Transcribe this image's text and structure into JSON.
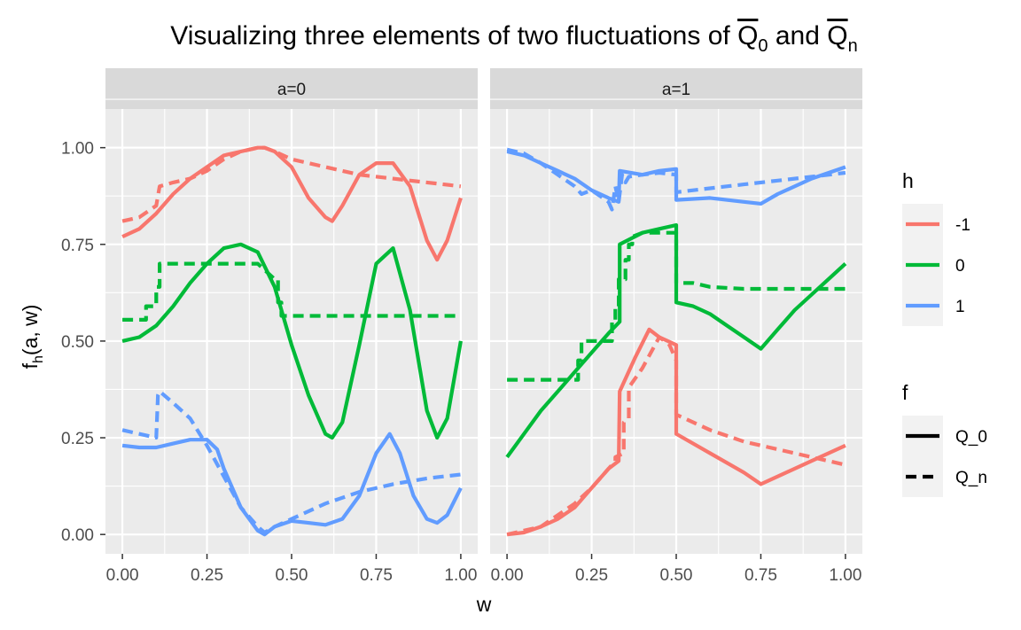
{
  "chart_data": {
    "type": "line",
    "title": {
      "prefix": "Visualizing three elements of two fluctuations of ",
      "q0_letter": "Q",
      "q0_sub": "0",
      "joiner": " and ",
      "qn_letter": "Q",
      "qn_sub": "n"
    },
    "xlabel": "w",
    "ylabel": {
      "base": "f",
      "sub": "h",
      "rest": "(a, w)"
    },
    "xlim": [
      -0.05,
      1.05
    ],
    "ylim": [
      -0.05,
      1.1
    ],
    "x_ticks": [
      0,
      0.25,
      0.5,
      0.75,
      1
    ],
    "x_tick_labels": [
      "0.00",
      "0.25",
      "0.50",
      "0.75",
      "1.00"
    ],
    "y_ticks": [
      0,
      0.25,
      0.5,
      0.75,
      1
    ],
    "y_tick_labels": [
      "0.00",
      "0.25",
      "0.50",
      "0.75",
      "1.00"
    ],
    "grid": true,
    "panels": [
      {
        "label": "a=0",
        "series": [
          {
            "h": "-1",
            "f": "Q_0",
            "x": [
              0,
              0.05,
              0.1,
              0.15,
              0.2,
              0.25,
              0.3,
              0.35,
              0.4,
              0.42,
              0.45,
              0.5,
              0.55,
              0.6,
              0.62,
              0.65,
              0.7,
              0.75,
              0.8,
              0.85,
              0.9,
              0.93,
              0.96,
              1.0
            ],
            "y": [
              0.77,
              0.79,
              0.83,
              0.88,
              0.92,
              0.95,
              0.98,
              0.99,
              1.0,
              1.0,
              0.99,
              0.95,
              0.87,
              0.82,
              0.81,
              0.85,
              0.93,
              0.96,
              0.96,
              0.9,
              0.76,
              0.71,
              0.76,
              0.87
            ]
          },
          {
            "h": "-1",
            "f": "Q_n",
            "x": [
              0,
              0.05,
              0.1,
              0.11,
              0.15,
              0.2,
              0.25,
              0.3,
              0.35,
              0.4,
              0.42,
              0.45,
              0.5,
              0.6,
              0.7,
              0.8,
              0.9,
              1.0
            ],
            "y": [
              0.81,
              0.82,
              0.85,
              0.9,
              0.91,
              0.92,
              0.94,
              0.97,
              0.99,
              1.0,
              1.0,
              0.99,
              0.97,
              0.95,
              0.93,
              0.92,
              0.91,
              0.9
            ]
          },
          {
            "h": "0",
            "f": "Q_0",
            "x": [
              0,
              0.05,
              0.1,
              0.15,
              0.2,
              0.25,
              0.3,
              0.35,
              0.4,
              0.45,
              0.5,
              0.55,
              0.6,
              0.62,
              0.65,
              0.7,
              0.75,
              0.8,
              0.85,
              0.9,
              0.93,
              0.96,
              1.0
            ],
            "y": [
              0.5,
              0.51,
              0.54,
              0.59,
              0.65,
              0.7,
              0.74,
              0.75,
              0.73,
              0.64,
              0.49,
              0.36,
              0.26,
              0.25,
              0.29,
              0.49,
              0.7,
              0.74,
              0.58,
              0.32,
              0.25,
              0.3,
              0.5
            ]
          },
          {
            "h": "0",
            "f": "Q_n",
            "x": [
              0,
              0.07,
              0.07,
              0.1,
              0.1,
              0.11,
              0.11,
              0.2,
              0.3,
              0.4,
              0.45,
              0.46,
              0.46,
              0.47,
              0.47,
              0.5,
              0.6,
              0.7,
              0.8,
              0.9,
              1.0
            ],
            "y": [
              0.555,
              0.555,
              0.59,
              0.59,
              0.64,
              0.64,
              0.7,
              0.7,
              0.7,
              0.7,
              0.66,
              0.66,
              0.6,
              0.6,
              0.565,
              0.565,
              0.565,
              0.565,
              0.565,
              0.565,
              0.565
            ]
          },
          {
            "h": "1",
            "f": "Q_0",
            "x": [
              0,
              0.05,
              0.1,
              0.15,
              0.2,
              0.25,
              0.28,
              0.3,
              0.35,
              0.4,
              0.42,
              0.45,
              0.5,
              0.55,
              0.6,
              0.65,
              0.7,
              0.75,
              0.79,
              0.82,
              0.86,
              0.9,
              0.93,
              0.96,
              1.0
            ],
            "y": [
              0.23,
              0.225,
              0.225,
              0.235,
              0.245,
              0.245,
              0.22,
              0.17,
              0.07,
              0.01,
              0.0,
              0.02,
              0.035,
              0.03,
              0.025,
              0.04,
              0.1,
              0.21,
              0.26,
              0.21,
              0.1,
              0.04,
              0.03,
              0.05,
              0.12
            ]
          },
          {
            "h": "1",
            "f": "Q_n",
            "x": [
              0,
              0.05,
              0.1,
              0.105,
              0.11,
              0.15,
              0.2,
              0.25,
              0.3,
              0.35,
              0.4,
              0.42,
              0.45,
              0.5,
              0.6,
              0.7,
              0.8,
              0.9,
              1.0
            ],
            "y": [
              0.27,
              0.26,
              0.25,
              0.36,
              0.37,
              0.34,
              0.3,
              0.23,
              0.15,
              0.07,
              0.02,
              0.005,
              0.02,
              0.04,
              0.08,
              0.11,
              0.13,
              0.145,
              0.155
            ]
          }
        ]
      },
      {
        "label": "a=1",
        "series": [
          {
            "h": "-1",
            "f": "Q_0",
            "x": [
              0,
              0.05,
              0.1,
              0.15,
              0.2,
              0.25,
              0.3,
              0.33,
              0.333,
              0.38,
              0.42,
              0.45,
              0.5,
              0.5,
              0.6,
              0.7,
              0.75,
              0.8,
              0.9,
              1.0
            ],
            "y": [
              0.0,
              0.005,
              0.02,
              0.04,
              0.07,
              0.12,
              0.17,
              0.19,
              0.37,
              0.46,
              0.53,
              0.51,
              0.49,
              0.26,
              0.21,
              0.16,
              0.13,
              0.15,
              0.19,
              0.23
            ]
          },
          {
            "h": "-1",
            "f": "Q_n",
            "x": [
              0,
              0.05,
              0.1,
              0.15,
              0.2,
              0.25,
              0.3,
              0.32,
              0.32,
              0.345,
              0.345,
              0.36,
              0.36,
              0.4,
              0.45,
              0.48,
              0.5,
              0.5,
              0.6,
              0.7,
              0.8,
              0.9,
              1.0
            ],
            "y": [
              0.0,
              0.01,
              0.02,
              0.05,
              0.08,
              0.12,
              0.17,
              0.19,
              0.2,
              0.21,
              0.29,
              0.3,
              0.38,
              0.43,
              0.51,
              0.49,
              0.45,
              0.31,
              0.27,
              0.24,
              0.22,
              0.2,
              0.18
            ]
          },
          {
            "h": "0",
            "f": "Q_0",
            "x": [
              0,
              0.05,
              0.1,
              0.15,
              0.2,
              0.25,
              0.3,
              0.333,
              0.333,
              0.4,
              0.45,
              0.5,
              0.5,
              0.55,
              0.6,
              0.65,
              0.7,
              0.75,
              0.8,
              0.85,
              0.9,
              0.95,
              1.0
            ],
            "y": [
              0.2,
              0.26,
              0.32,
              0.37,
              0.42,
              0.47,
              0.52,
              0.55,
              0.75,
              0.78,
              0.79,
              0.8,
              0.6,
              0.59,
              0.57,
              0.54,
              0.51,
              0.48,
              0.53,
              0.58,
              0.62,
              0.66,
              0.7
            ]
          },
          {
            "h": "0",
            "f": "Q_n",
            "x": [
              0,
              0.21,
              0.21,
              0.22,
              0.22,
              0.31,
              0.31,
              0.32,
              0.32,
              0.33,
              0.33,
              0.35,
              0.35,
              0.36,
              0.36,
              0.37,
              0.37,
              0.4,
              0.45,
              0.5,
              0.5,
              0.55,
              0.6,
              0.7,
              0.8,
              0.9,
              1.0
            ],
            "y": [
              0.4,
              0.4,
              0.45,
              0.45,
              0.5,
              0.5,
              0.55,
              0.55,
              0.59,
              0.59,
              0.66,
              0.66,
              0.71,
              0.71,
              0.75,
              0.75,
              0.77,
              0.78,
              0.78,
              0.78,
              0.65,
              0.65,
              0.64,
              0.635,
              0.635,
              0.635,
              0.635
            ]
          },
          {
            "h": "1",
            "f": "Q_0",
            "x": [
              0,
              0.05,
              0.1,
              0.15,
              0.2,
              0.25,
              0.3,
              0.33,
              0.333,
              0.4,
              0.45,
              0.5,
              0.5,
              0.6,
              0.7,
              0.75,
              0.8,
              0.9,
              1.0
            ],
            "y": [
              0.99,
              0.98,
              0.96,
              0.94,
              0.92,
              0.89,
              0.87,
              0.86,
              0.94,
              0.93,
              0.94,
              0.945,
              0.865,
              0.87,
              0.86,
              0.855,
              0.88,
              0.92,
              0.95
            ]
          },
          {
            "h": "1",
            "f": "Q_n",
            "x": [
              0,
              0.05,
              0.1,
              0.15,
              0.2,
              0.22,
              0.25,
              0.3,
              0.31,
              0.32,
              0.33,
              0.34,
              0.35,
              0.36,
              0.4,
              0.45,
              0.5,
              0.5,
              0.6,
              0.7,
              0.8,
              0.9,
              1.0
            ],
            "y": [
              0.995,
              0.985,
              0.96,
              0.93,
              0.9,
              0.88,
              0.89,
              0.86,
              0.84,
              0.9,
              0.86,
              0.93,
              0.91,
              0.925,
              0.93,
              0.935,
              0.93,
              0.885,
              0.895,
              0.905,
              0.915,
              0.925,
              0.935
            ]
          }
        ]
      }
    ],
    "legend": {
      "placement": "right",
      "h": {
        "title": "h",
        "entries": [
          {
            "label": "-1",
            "color": "#F8766D"
          },
          {
            "label": "0",
            "color": "#00BA38"
          },
          {
            "label": "1",
            "color": "#619CFF"
          }
        ]
      },
      "f": {
        "title": "f",
        "entries": [
          {
            "label": "Q_0",
            "style": "solid"
          },
          {
            "label": "Q_n",
            "style": "dashed"
          }
        ]
      }
    },
    "colors": {
      "panel_background": "#EBEBEB",
      "strip_background": "#D9D9D9",
      "grid": "#FFFFFF",
      "text": "#1A1A1A",
      "axis_text": "#4D4D4D"
    }
  }
}
